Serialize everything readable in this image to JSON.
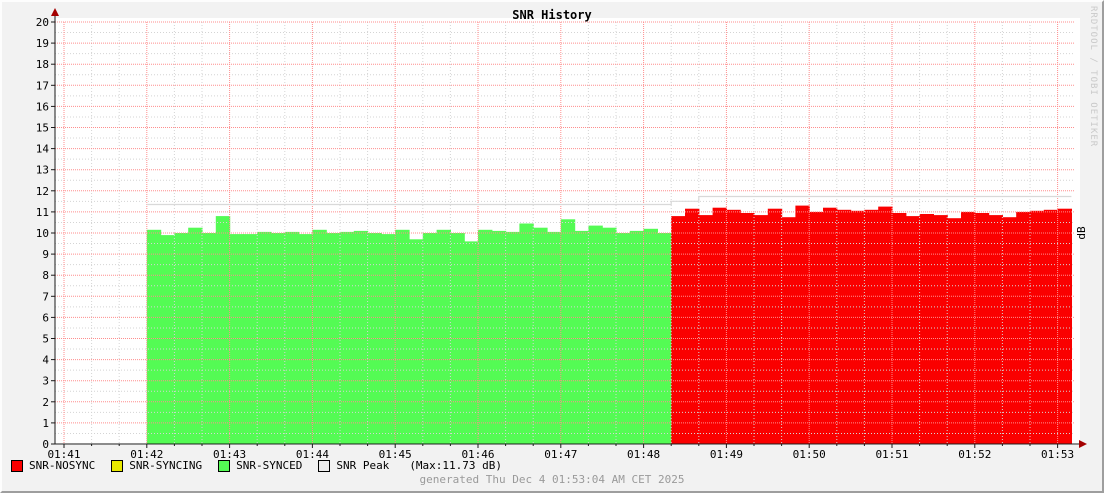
{
  "header": {
    "title": "SNR History"
  },
  "watermark": "RRDTOOL / TOBI OETIKER",
  "right_axis_label": "dB",
  "footer": {
    "generated": "generated Thu Dec  4 01:53:04 AM CET 2025"
  },
  "legend": {
    "items": [
      {
        "label": "SNR-NOSYNC",
        "color": "#fa0000"
      },
      {
        "label": "SNR-SYNCING",
        "color": "#e8e800"
      },
      {
        "label": "SNR-SYNCED",
        "color": "#54fb54"
      },
      {
        "label": "SNR Peak",
        "color": "#ececec"
      }
    ],
    "max_label": "(Max:11.73 dB)"
  },
  "chart_data": {
    "type": "bar",
    "title": "SNR History",
    "ylabel": "dB",
    "ylim": [
      0,
      20
    ],
    "y_tick_step": 1,
    "x_tick_labels": [
      "01:41",
      "01:42",
      "01:43",
      "01:44",
      "01:45",
      "01:46",
      "01:47",
      "01:48",
      "01:49",
      "01:50",
      "01:51",
      "01:52",
      "01:53"
    ],
    "x_tick_seconds": [
      0,
      60,
      120,
      180,
      240,
      300,
      360,
      420,
      480,
      540,
      600,
      660,
      720
    ],
    "grid": {
      "major_color": "#ff8d8d",
      "minor_color": "#d4d4d4",
      "minor_x_step_s": 20,
      "minor_y_step": 0.5
    },
    "axis_color": "#1a1a1a",
    "arrow_color": "#a40000",
    "series": [
      {
        "name": "SNR-SYNCED",
        "color": "#54fb54",
        "start_s": 60,
        "step_s": 10,
        "values": [
          10.15,
          9.9,
          10.0,
          10.25,
          10.0,
          10.8,
          9.95,
          9.95,
          10.05,
          10.0,
          10.05,
          9.95,
          10.15,
          10.0,
          10.05,
          10.1,
          10.0,
          9.95,
          10.15,
          9.7,
          10.0,
          10.15,
          10.0,
          9.6,
          10.15,
          10.1,
          10.05,
          10.45,
          10.25,
          10.05,
          10.65,
          10.1,
          10.35,
          10.25,
          10.0,
          10.1,
          10.2,
          10.0
        ]
      },
      {
        "name": "SNR-NOSYNC",
        "color": "#fa0000",
        "start_s": 440,
        "step_s": 10,
        "values": [
          10.8,
          11.15,
          10.85,
          11.2,
          11.1,
          10.95,
          10.85,
          11.15,
          10.75,
          11.3,
          11.0,
          11.2,
          11.1,
          11.05,
          11.1,
          11.25,
          10.95,
          10.8,
          10.9,
          10.85,
          10.7,
          11.0,
          10.95,
          10.85,
          10.75,
          11.0,
          11.05,
          11.1,
          11.15
        ]
      }
    ],
    "peak_line": {
      "name": "SNR Peak",
      "color": "#d9d9d9",
      "max_value": 11.73,
      "segments": [
        {
          "from_s": 60,
          "to_s": 440,
          "value": 11.35
        },
        {
          "from_s": 440,
          "to_s": 460,
          "value": 11.5
        },
        {
          "from_s": 460,
          "to_s": 730,
          "value": 11.73
        }
      ]
    }
  }
}
